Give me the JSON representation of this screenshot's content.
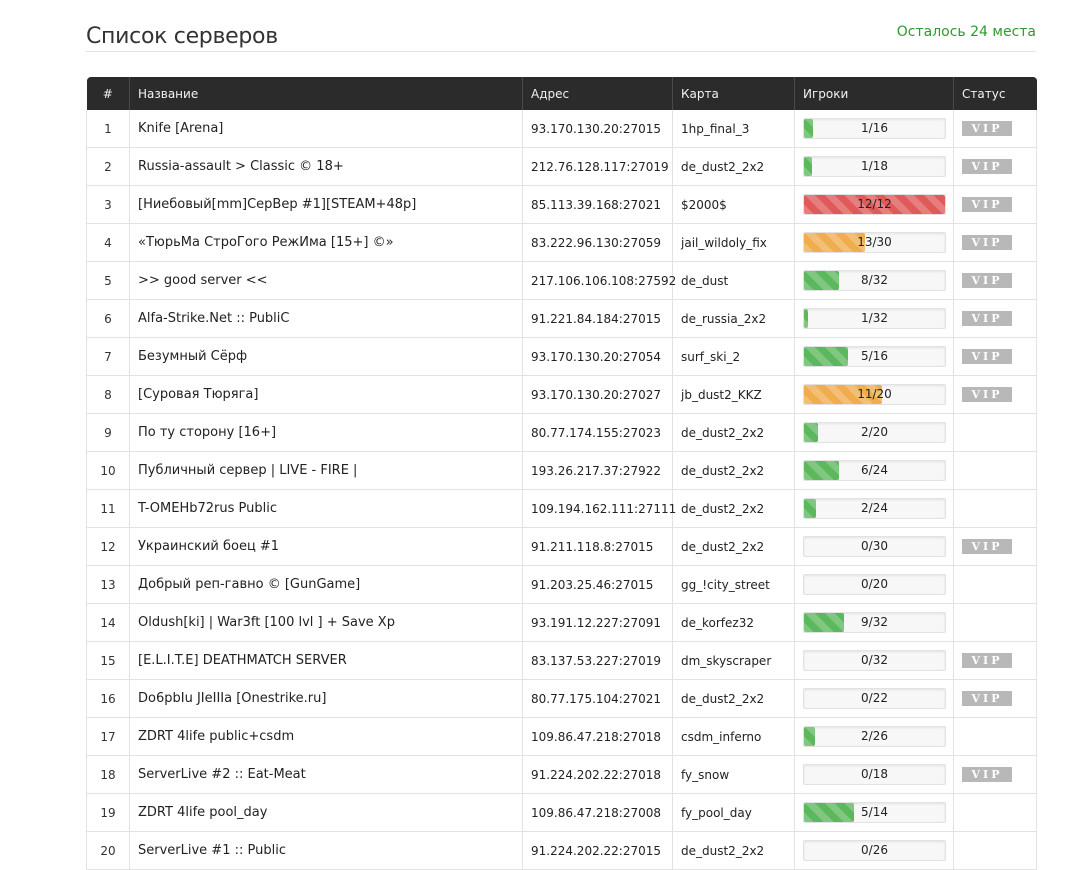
{
  "page": {
    "title": "Список серверов",
    "slots_left": "Осталось 24 места"
  },
  "columns": {
    "num": "#",
    "name": "Название",
    "address": "Адрес",
    "map": "Карта",
    "players": "Игроки",
    "status": "Статус"
  },
  "colors": {
    "green": "#5cb85c",
    "orange": "#f0ad4e",
    "red": "#e05a5a",
    "accent": "#2e9a2e"
  },
  "servers": [
    {
      "num": "1",
      "name": "Knife [Arena]",
      "address": "93.170.130.20:27015",
      "map": "1hp_final_3",
      "players": "1/16",
      "current": 1,
      "max": 16,
      "bar_color": "green",
      "status": "VIP"
    },
    {
      "num": "2",
      "name": "Russia-assault > Classic © 18+",
      "address": "212.76.128.117:27019",
      "map": "de_dust2_2x2",
      "players": "1/18",
      "current": 1,
      "max": 18,
      "bar_color": "green",
      "status": "VIP"
    },
    {
      "num": "3",
      "name": "[Ниебовый[mm]СерВер #1][STEAM+48p]",
      "address": "85.113.39.168:27021",
      "map": "$2000$",
      "players": "12/12",
      "current": 12,
      "max": 12,
      "bar_color": "red",
      "status": "VIP"
    },
    {
      "num": "4",
      "name": "«ТюрьМа СтроГого РежИма [15+] ©»",
      "address": "83.222.96.130:27059",
      "map": "jail_wildoly_fix",
      "players": "13/30",
      "current": 13,
      "max": 30,
      "bar_color": "orange",
      "status": "VIP"
    },
    {
      "num": "5",
      "name": ">> good server <<",
      "address": "217.106.106.108:27592",
      "map": "de_dust",
      "players": "8/32",
      "current": 8,
      "max": 32,
      "bar_color": "green",
      "status": "VIP"
    },
    {
      "num": "6",
      "name": "Alfa-Strike.Net :: PubliC",
      "address": "91.221.84.184:27015",
      "map": "de_russia_2x2",
      "players": "1/32",
      "current": 1,
      "max": 32,
      "bar_color": "green",
      "status": "VIP"
    },
    {
      "num": "7",
      "name": "Безумный Сёрф",
      "address": "93.170.130.20:27054",
      "map": "surf_ski_2",
      "players": "5/16",
      "current": 5,
      "max": 16,
      "bar_color": "green",
      "status": "VIP"
    },
    {
      "num": "8",
      "name": "[Суровая Тюряга]",
      "address": "93.170.130.20:27027",
      "map": "jb_dust2_KKZ",
      "players": "11/20",
      "current": 11,
      "max": 20,
      "bar_color": "orange",
      "status": "VIP"
    },
    {
      "num": "9",
      "name": "По ту сторону [16+]",
      "address": "80.77.174.155:27023",
      "map": "de_dust2_2x2",
      "players": "2/20",
      "current": 2,
      "max": 20,
      "bar_color": "green",
      "status": ""
    },
    {
      "num": "10",
      "name": "Публичный сервер | LIVE - FIRE |",
      "address": "193.26.217.37:27922",
      "map": "de_dust2_2x2",
      "players": "6/24",
      "current": 6,
      "max": 24,
      "bar_color": "green",
      "status": ""
    },
    {
      "num": "11",
      "name": "T-OMEHb72rus Public",
      "address": "109.194.162.111:27111",
      "map": "de_dust2_2x2",
      "players": "2/24",
      "current": 2,
      "max": 24,
      "bar_color": "green",
      "status": ""
    },
    {
      "num": "12",
      "name": "Украинский боец #1",
      "address": "91.211.118.8:27015",
      "map": "de_dust2_2x2",
      "players": "0/30",
      "current": 0,
      "max": 30,
      "bar_color": "green",
      "status": "VIP"
    },
    {
      "num": "13",
      "name": "Добрый реп-гавно © [GunGame]",
      "address": "91.203.25.46:27015",
      "map": "gg_!city_street",
      "players": "0/20",
      "current": 0,
      "max": 20,
      "bar_color": "green",
      "status": ""
    },
    {
      "num": "14",
      "name": "Oldush[ki] | War3ft [100 lvl ] + Save Xp",
      "address": "93.191.12.227:27091",
      "map": "de_korfez32",
      "players": "9/32",
      "current": 9,
      "max": 32,
      "bar_color": "green",
      "status": ""
    },
    {
      "num": "15",
      "name": "[E.L.I.T.E] DEATHMATCH SERVER",
      "address": "83.137.53.227:27019",
      "map": "dm_skyscraper",
      "players": "0/32",
      "current": 0,
      "max": 32,
      "bar_color": "green",
      "status": "VIP"
    },
    {
      "num": "16",
      "name": "Do6pbIu JIeIIIa [Onestrike.ru]",
      "address": "80.77.175.104:27021",
      "map": "de_dust2_2x2",
      "players": "0/22",
      "current": 0,
      "max": 22,
      "bar_color": "green",
      "status": "VIP"
    },
    {
      "num": "17",
      "name": "ZDRT 4life public+csdm",
      "address": "109.86.47.218:27018",
      "map": "csdm_inferno",
      "players": "2/26",
      "current": 2,
      "max": 26,
      "bar_color": "green",
      "status": ""
    },
    {
      "num": "18",
      "name": "ServerLive #2 :: Eat-Meat",
      "address": "91.224.202.22:27018",
      "map": "fy_snow",
      "players": "0/18",
      "current": 0,
      "max": 18,
      "bar_color": "green",
      "status": "VIP"
    },
    {
      "num": "19",
      "name": "ZDRT 4life pool_day",
      "address": "109.86.47.218:27008",
      "map": "fy_pool_day",
      "players": "5/14",
      "current": 5,
      "max": 14,
      "bar_color": "green",
      "status": ""
    },
    {
      "num": "20",
      "name": "ServerLive #1 :: Public",
      "address": "91.224.202.22:27015",
      "map": "de_dust2_2x2",
      "players": "0/26",
      "current": 0,
      "max": 26,
      "bar_color": "green",
      "status": ""
    }
  ]
}
